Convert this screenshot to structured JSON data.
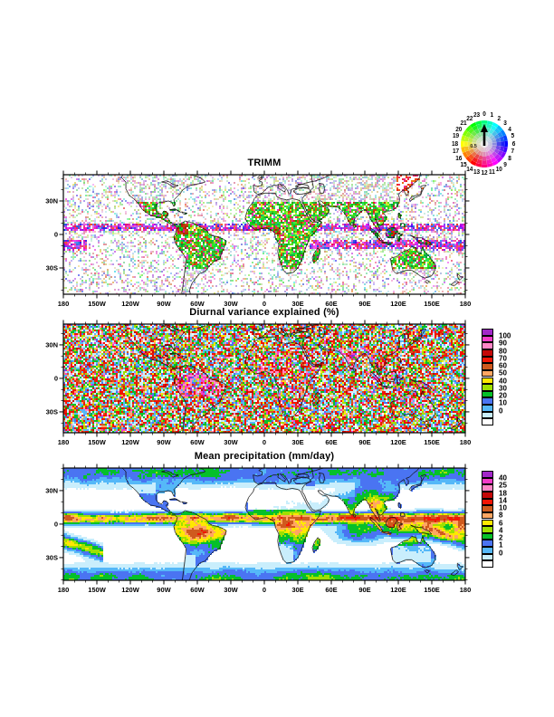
{
  "figure": {
    "clock_legend": {
      "hour_labels": [
        "0",
        "1",
        "2",
        "3",
        "4",
        "5",
        "6",
        "7",
        "8",
        "9",
        "10",
        "11",
        "12",
        "13",
        "14",
        "15",
        "16",
        "17",
        "18",
        "19",
        "20",
        "21",
        "22",
        "23"
      ],
      "inner_label": "0.5"
    },
    "panels": [
      {
        "title": "TRIMM"
      },
      {
        "title": "Diurnal variance explained (%)",
        "colorbar_labels": [
          "100",
          "90",
          "80",
          "70",
          "60",
          "50",
          "40",
          "30",
          "20",
          "10",
          "0"
        ]
      },
      {
        "title": "Mean precipitation (mm/day)",
        "colorbar_labels": [
          "40",
          "25",
          "18",
          "14",
          "10",
          "8",
          "6",
          "4",
          "2",
          "1",
          "0"
        ]
      }
    ],
    "x_tick_labels": [
      "180",
      "150W",
      "120W",
      "90W",
      "60W",
      "30W",
      "0",
      "30E",
      "60E",
      "90E",
      "120E",
      "150E",
      "180"
    ],
    "y_tick_labels": [
      "30N",
      "0",
      "30S"
    ],
    "rainbow_palette": [
      "#a228c8",
      "#f53cc8",
      "#ff86c6",
      "#c40808",
      "#f21505",
      "#cf5a1e",
      "#ffa662",
      "#ffe800",
      "#9fe000",
      "#05c02a",
      "#4a74f2",
      "#55b8f8",
      "#c9eefc",
      "#ffffff"
    ]
  },
  "chart_data": [
    {
      "type": "heatmap",
      "title": "TRIMM",
      "x": {
        "range": [
          -180,
          180
        ],
        "tick_labels": [
          "180",
          "150W",
          "120W",
          "90W",
          "60W",
          "30W",
          "0",
          "30E",
          "60E",
          "90E",
          "120E",
          "150E",
          "180"
        ]
      },
      "y": {
        "range": [
          -54,
          54
        ],
        "tick_labels": [
          "30N",
          "0",
          "30S"
        ]
      },
      "legend": {
        "kind": "24-hour phase color wheel",
        "hour_labels": [
          "0",
          "1",
          "2",
          "3",
          "4",
          "5",
          "6",
          "7",
          "8",
          "9",
          "10",
          "11",
          "12",
          "13",
          "14",
          "15",
          "16",
          "17",
          "18",
          "19",
          "20",
          "21",
          "22",
          "23"
        ],
        "inner_radius_label": "0.5",
        "pointer": "black arrow toward hour 0"
      },
      "description": "Local time (hue) of diurnal maximum: oceans mostly white with faint pastel speckle; saturated magenta/purple/blue band along the ITCZ near 5-10N; dense green speckle over tropical land (Amazon, central Africa, Maritime Continent, India) with red/dark-red coastal fringes"
    },
    {
      "type": "heatmap",
      "title": "Diurnal variance explained (%)",
      "levels": [
        0,
        10,
        20,
        30,
        40,
        50,
        60,
        70,
        80,
        90,
        100
      ],
      "colorbar_labels": [
        "100",
        "90",
        "80",
        "70",
        "60",
        "50",
        "40",
        "30",
        "20",
        "10",
        "0"
      ],
      "palette": [
        "#a228c8",
        "#f53cc8",
        "#ff86c6",
        "#c40808",
        "#f21505",
        "#cf5a1e",
        "#ffa662",
        "#ffe800",
        "#9fe000",
        "#05c02a",
        "#4a74f2",
        "#55b8f8",
        "#c9eefc",
        "#ffffff"
      ],
      "x": {
        "range": [
          -180,
          180
        ]
      },
      "y": {
        "range": [
          -49,
          49
        ]
      },
      "description": "Speckled percent-variance field dominated by red/orange with cyan, green and pale-blue noise; magenta/pink concentrations over Amazonia, India, the Maritime Continent and tropical land"
    },
    {
      "type": "heatmap",
      "title": "Mean precipitation (mm/day)",
      "levels": [
        0,
        1,
        2,
        4,
        6,
        8,
        10,
        14,
        18,
        25,
        40
      ],
      "colorbar_labels": [
        "40",
        "25",
        "18",
        "14",
        "10",
        "8",
        "6",
        "4",
        "2",
        "1",
        "0"
      ],
      "palette": [
        "#a228c8",
        "#f53cc8",
        "#ff86c6",
        "#c40808",
        "#f21505",
        "#cf5a1e",
        "#ffa662",
        "#ffe800",
        "#9fe000",
        "#05c02a",
        "#4a74f2",
        "#55b8f8",
        "#c9eefc",
        "#ffffff"
      ],
      "x": {
        "range": [
          -180,
          180
        ]
      },
      "y": {
        "range": [
          -50,
          50
        ]
      },
      "description": "Orange/red ITCZ band near 5-10N, broad wet west-Pacific warm pool and SPCZ, green tropical land, pale-cyan/white subtropical dry zones (SE Pacific, S Atlantic, Sahara, Australia interior), green/blue mid-latitude storm tracks"
    }
  ]
}
